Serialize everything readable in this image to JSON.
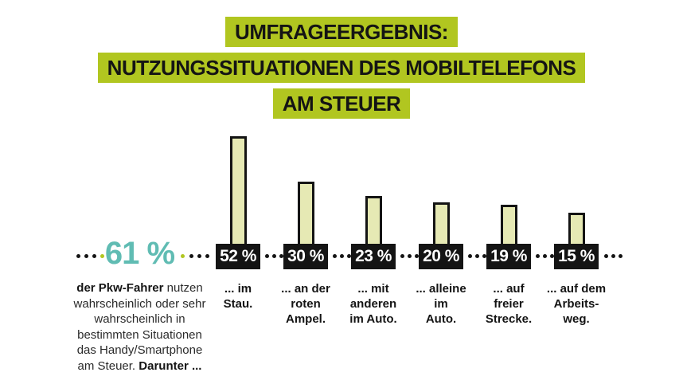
{
  "title": {
    "line1": "UMFRAGEERGEBNIS:",
    "line2": "NUTZUNGSSITUATIONEN DES MOBILTELEFONS",
    "line3": "AM STEUER"
  },
  "highlight": {
    "value": "61 %",
    "description_bold_start": "der Pkw-Fahrer",
    "description_middle": " nutzen wahrscheinlich oder sehr wahrscheinlich in bestimmten Situationen das Handy/Smartphone am Steuer. ",
    "description_bold_end": "Darunter ..."
  },
  "colors": {
    "lime": "#b1c620",
    "teal": "#60bcb3",
    "bar_fill": "#e6e9b4",
    "box_black": "#141414"
  },
  "chart_data": {
    "type": "bar",
    "title": "UMFRAGEERGEBNIS: NUTZUNGSSITUATIONEN DES MOBILTELEFONS AM STEUER",
    "categories": [
      "... im Stau.",
      "... an der roten Ampel.",
      "... mit anderen im Auto.",
      "... alleine im Auto.",
      "... auf freier Strecke.",
      "... auf dem Arbeitsweg."
    ],
    "values": [
      52,
      30,
      23,
      20,
      19,
      15
    ],
    "value_labels": [
      "52 %",
      "30 %",
      "23 %",
      "20 %",
      "19 %",
      "15 %"
    ],
    "captions": [
      "... im\nStau.",
      "... an der\nroten\nAmpel.",
      "... mit\nanderen\nim Auto.",
      "... alleine\nim\nAuto.",
      "... auf\nfreier\nStrecke.",
      "... auf dem\nArbeits-\nweg."
    ],
    "highlight_value": 61,
    "highlight_label": "61 %",
    "xlabel": "",
    "ylabel": "",
    "ylim": [
      0,
      60
    ],
    "grid": false,
    "legend": false
  }
}
